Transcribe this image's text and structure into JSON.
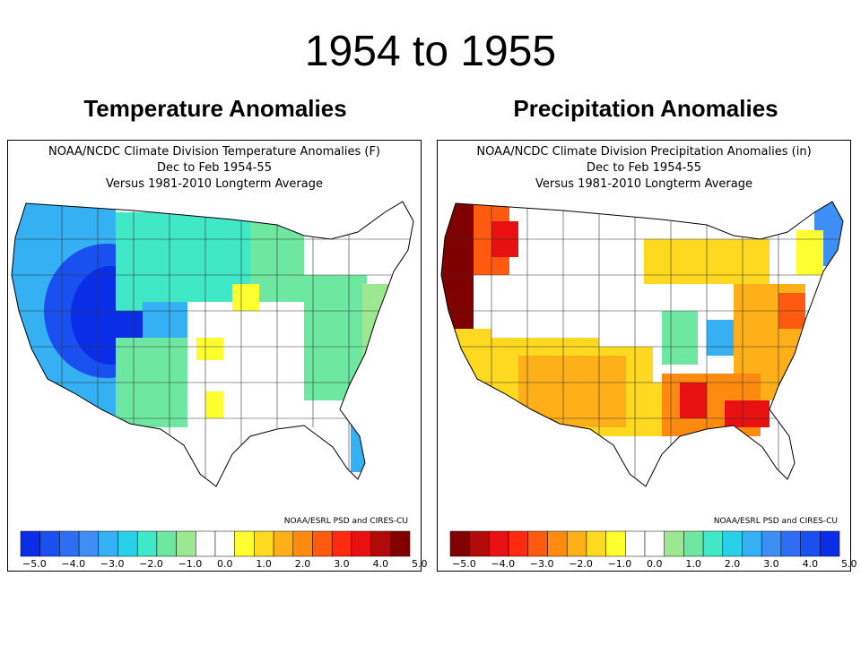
{
  "slide": {
    "title": "1954 to 1955"
  },
  "panels": [
    {
      "id": "temp",
      "subtitle": "Temperature Anomalies",
      "header_lines": [
        "NOAA/NCDC Climate Division Temperature Anomalies (F)",
        "Dec to Feb 1954-55",
        "Versus 1981-2010 Longterm Average"
      ],
      "credit": "NOAA/ESRL PSD and CIRES-CU",
      "colorbar": {
        "colors": [
          "#0a2ee8",
          "#1a4ff0",
          "#2d6ef5",
          "#3d8ef5",
          "#35b0f2",
          "#28d0e8",
          "#40e8c8",
          "#6ee8a0",
          "#9ce890",
          "#ffffff",
          "#ffffff",
          "#ffff30",
          "#ffd820",
          "#ffb018",
          "#ff8a10",
          "#ff5a10",
          "#ff2a10",
          "#e81010",
          "#b00a0a",
          "#800000"
        ],
        "tick_labels": [
          "-5.0",
          "-4.0",
          "-3.0",
          "-2.0",
          "-1.0",
          "0.0",
          "1.0",
          "2.0",
          "3.0",
          "4.0",
          "5.0"
        ]
      }
    },
    {
      "id": "precip",
      "subtitle": "Precipitation Anomalies",
      "header_lines": [
        "NOAA/NCDC Climate Division Precipitation Anomalies (in)",
        "Dec to Feb 1954-55",
        "Versus 1981-2010 Longterm Average"
      ],
      "credit": "NOAA/ESRL PSD and CIRES-CU",
      "colorbar": {
        "colors": [
          "#800000",
          "#b00a0a",
          "#e81010",
          "#ff2a10",
          "#ff5a10",
          "#ff8a10",
          "#ffb018",
          "#ffd820",
          "#ffff30",
          "#ffffff",
          "#ffffff",
          "#9ce890",
          "#6ee8a0",
          "#40e8c8",
          "#28d0e8",
          "#35b0f2",
          "#3d8ef5",
          "#2d6ef5",
          "#1a4ff0",
          "#0a2ee8"
        ],
        "tick_labels": [
          "-5.0",
          "-4.0",
          "-3.0",
          "-2.0",
          "-1.0",
          "0.0",
          "1.0",
          "2.0",
          "3.0",
          "4.0",
          "5.0"
        ]
      }
    }
  ]
}
